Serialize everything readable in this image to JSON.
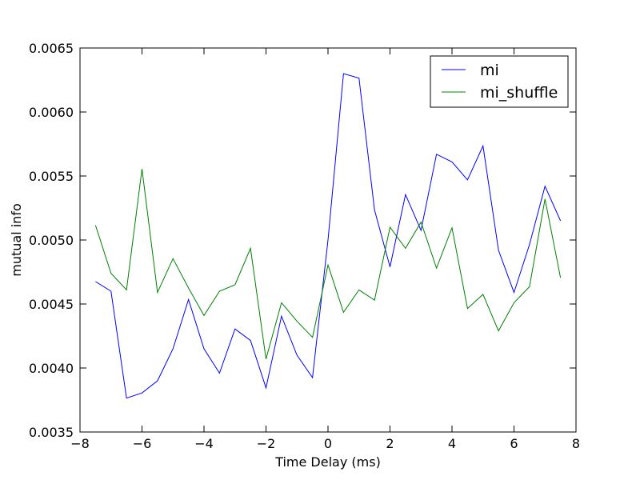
{
  "chart_data": {
    "type": "line",
    "title": "",
    "xlabel": "Time Delay (ms)",
    "ylabel": "mutual info",
    "xlim": [
      -8,
      8
    ],
    "ylim": [
      0.0035,
      0.0065
    ],
    "xticks": [
      -8,
      -6,
      -4,
      -2,
      0,
      2,
      4,
      6,
      8
    ],
    "xtick_labels": [
      "−8",
      "−6",
      "−4",
      "−2",
      "0",
      "2",
      "4",
      "6",
      "8"
    ],
    "yticks": [
      0.0035,
      0.004,
      0.0045,
      0.005,
      0.0055,
      0.006,
      0.0065
    ],
    "ytick_labels": [
      "0.0035",
      "0.0040",
      "0.0045",
      "0.0050",
      "0.0055",
      "0.0060",
      "0.0065"
    ],
    "grid": false,
    "legend_position": "top-right",
    "x": [
      -7.5,
      -7.0,
      -6.5,
      -6.0,
      -5.5,
      -5.0,
      -4.5,
      -4.0,
      -3.5,
      -3.0,
      -2.5,
      -2.0,
      -1.5,
      -1.0,
      -0.5,
      0.0,
      0.5,
      1.0,
      1.5,
      2.0,
      2.5,
      3.0,
      3.5,
      4.0,
      4.5,
      5.0,
      5.5,
      6.0,
      6.5,
      7.0,
      7.5
    ],
    "series": [
      {
        "name": "mi",
        "color": "#0000ff",
        "values": [
          0.004675,
          0.0046,
          0.003765,
          0.003805,
          0.0039,
          0.00415,
          0.004535,
          0.00415,
          0.00396,
          0.004305,
          0.004215,
          0.003845,
          0.004405,
          0.0041,
          0.003925,
          0.005,
          0.0063,
          0.006265,
          0.005235,
          0.00479,
          0.005355,
          0.005075,
          0.00567,
          0.00561,
          0.00547,
          0.005735,
          0.00492,
          0.00459,
          0.004965,
          0.00542,
          0.00515
        ]
      },
      {
        "name": "mi_shuffle",
        "color": "#008000",
        "values": [
          0.005115,
          0.00474,
          0.00461,
          0.005555,
          0.00459,
          0.004855,
          0.004625,
          0.00441,
          0.0046,
          0.00465,
          0.004935,
          0.00407,
          0.00451,
          0.004365,
          0.00424,
          0.004805,
          0.004435,
          0.00461,
          0.00453,
          0.0051,
          0.004935,
          0.00514,
          0.00478,
          0.005095,
          0.004465,
          0.004575,
          0.00429,
          0.00451,
          0.004635,
          0.00532,
          0.004705
        ]
      }
    ]
  }
}
